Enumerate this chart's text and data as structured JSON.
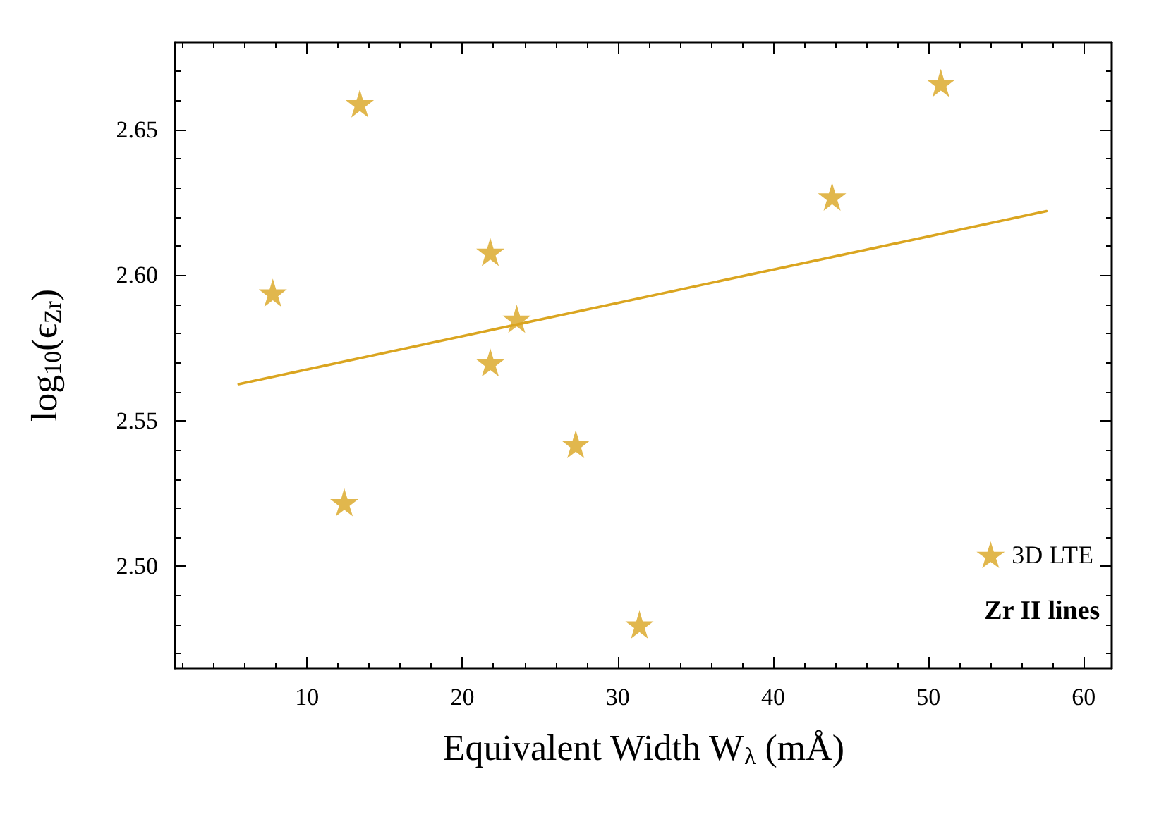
{
  "chart_data": {
    "type": "scatter",
    "xlabel": "Equivalent Width W$_{λ}$ (mÅ)",
    "ylabel": "log$_{10}$(ϵ$_{Zr}$)",
    "xlim": [
      1.5,
      61.8
    ],
    "xticks": [
      10,
      20,
      30,
      40,
      50,
      60
    ],
    "ylim": [
      2.465,
      2.68
    ],
    "yticks": [
      {
        "value": 2.5,
        "label": "2.50"
      },
      2.55,
      {
        "value": 2.6,
        "label": "2.60"
      },
      2.65
    ],
    "grid": false,
    "legend": "bottom right",
    "marker": "star",
    "annotations": [
      "Zr II lines"
    ],
    "series": [
      {
        "name": "3D LTE",
        "color": "#daa520",
        "x": [
          13.4,
          7.8,
          21.8,
          23.5,
          21.8,
          12.4,
          27.3,
          31.4,
          43.8,
          50.8
        ],
        "values": [
          2.659,
          2.594,
          2.608,
          2.585,
          2.57,
          2.522,
          2.542,
          2.48,
          2.627,
          2.666
        ]
      },
      {
        "type": "line",
        "color": "#daa520",
        "marker": "none",
        "line_style": "solid",
        "x": [
          5.6,
          57.6
        ],
        "values": [
          2.5626,
          2.622
        ]
      }
    ]
  }
}
